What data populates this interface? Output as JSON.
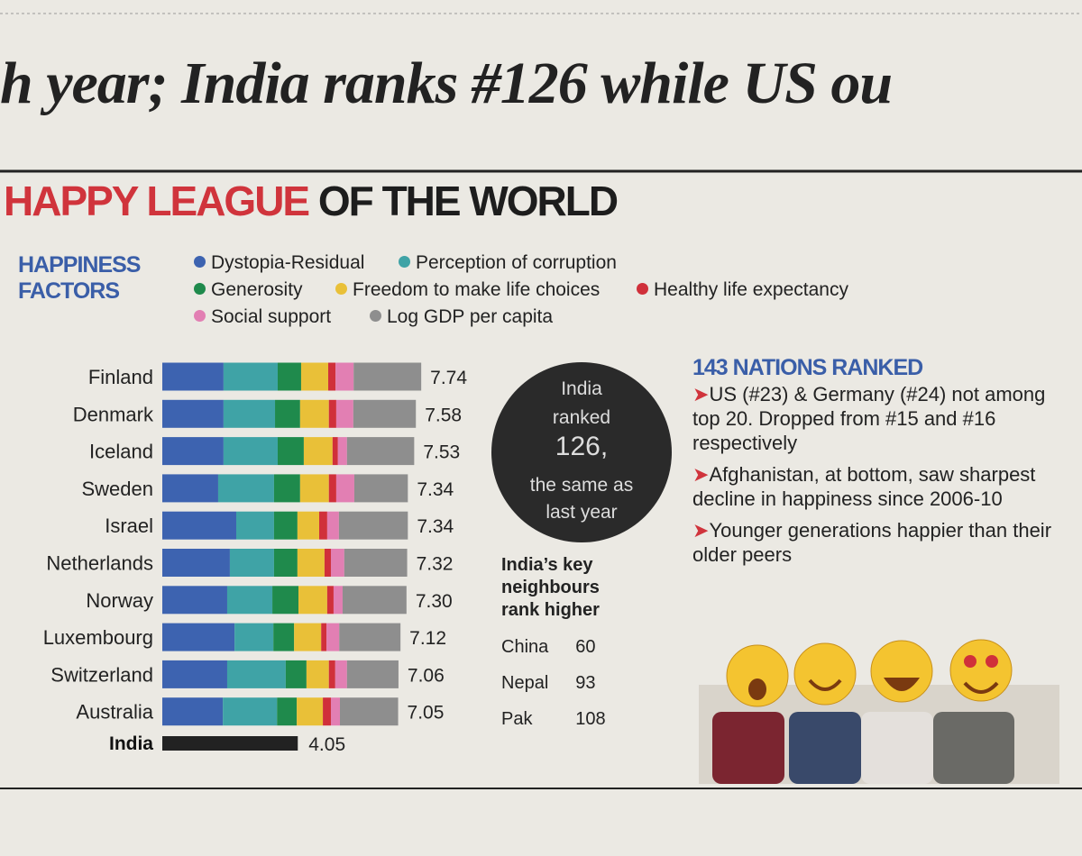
{
  "headline": "h year; India ranks #126 while US ou",
  "section": {
    "title_red": "HAPPY LEAGUE",
    "title_black": "OF THE WORLD"
  },
  "chart_data": {
    "type": "stacked-bar",
    "legend_title": [
      "HAPPINESS",
      "FACTORS"
    ],
    "categories": [
      "Finland",
      "Denmark",
      "Iceland",
      "Sweden",
      "Israel",
      "Netherlands",
      "Norway",
      "Luxembourg",
      "Switzerland",
      "Australia"
    ],
    "series": [
      {
        "name": "Dystopia-Residual",
        "color": "#3d63b0",
        "values": [
          1.83,
          1.83,
          1.83,
          1.67,
          2.21,
          2.02,
          1.94,
          2.16,
          1.94,
          1.81
        ]
      },
      {
        "name": "Perception of corruption",
        "color": "#3fa3a6",
        "values": [
          1.62,
          1.54,
          1.62,
          1.67,
          1.13,
          1.32,
          1.35,
          1.16,
          1.75,
          1.62
        ]
      },
      {
        "name": "Generosity",
        "color": "#1f8a4c",
        "values": [
          0.7,
          0.75,
          0.78,
          0.78,
          0.7,
          0.7,
          0.78,
          0.62,
          0.62,
          0.59
        ]
      },
      {
        "name": "Freedom to make life choices",
        "color": "#e9c038",
        "values": [
          0.81,
          0.86,
          0.86,
          0.86,
          0.65,
          0.81,
          0.86,
          0.81,
          0.67,
          0.78
        ]
      },
      {
        "name": "Healthy life expectancy",
        "color": "#d0303a",
        "values": [
          0.22,
          0.22,
          0.16,
          0.22,
          0.24,
          0.19,
          0.19,
          0.16,
          0.19,
          0.24
        ]
      },
      {
        "name": "Social support",
        "color": "#e27fb3",
        "values": [
          0.54,
          0.51,
          0.27,
          0.54,
          0.35,
          0.4,
          0.27,
          0.38,
          0.35,
          0.27
        ]
      },
      {
        "name": "Log GDP per capita",
        "color": "#8e8e8e",
        "values": [
          2.02,
          1.87,
          2.01,
          1.6,
          2.06,
          1.88,
          1.91,
          1.83,
          1.54,
          1.74
        ]
      }
    ],
    "totals": [
      7.74,
      7.58,
      7.53,
      7.34,
      7.34,
      7.32,
      7.3,
      7.12,
      7.06,
      7.05
    ],
    "value_labels": [
      "7.74",
      "7.58",
      "7.53",
      "7.34",
      "7.34",
      "7.32",
      "7.30",
      "7.12",
      "7.06",
      "7.05"
    ],
    "highlight": {
      "name": "India",
      "value": 4.05,
      "color": "#222222"
    }
  },
  "circle": [
    "India",
    "ranked",
    "126,",
    "the same as",
    "last year"
  ],
  "neighbours": {
    "title": [
      "India’s key",
      "neighbours",
      "rank higher"
    ],
    "rows": [
      [
        "China",
        60
      ],
      [
        "Nepal",
        93
      ],
      [
        "Pak",
        108
      ]
    ]
  },
  "facts": {
    "title": "143 NATIONS RANKED",
    "items": [
      "US (#23) & Germany (#24) not among top 20. Dropped from #15 and #16 respectively",
      "Afghanistan, at bottom, saw sharpest decline in happiness since 2006-10",
      "Younger generations happier than their older peers"
    ]
  }
}
